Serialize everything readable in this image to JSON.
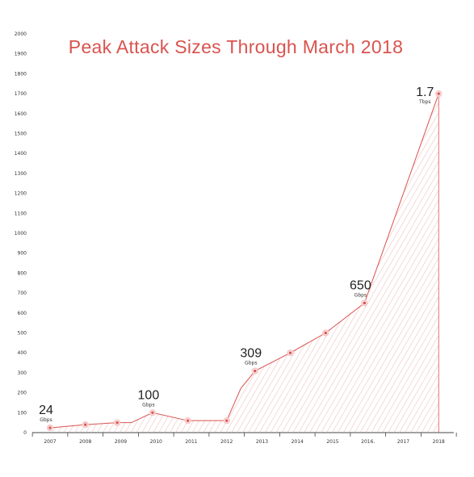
{
  "chart_data": {
    "type": "area",
    "title": "Peak Attack Sizes Through March 2018",
    "xlabel": "",
    "ylabel": "",
    "ylim": [
      0,
      2000
    ],
    "yticks": [
      0,
      100,
      200,
      300,
      400,
      500,
      600,
      700,
      800,
      900,
      1000,
      1100,
      1200,
      1300,
      1400,
      1500,
      1600,
      1700,
      1800,
      1900,
      2000
    ],
    "categories": [
      "2007",
      "2008",
      "2009",
      "2010",
      "2011",
      "2012",
      "2013",
      "2014",
      "2015",
      "2016.",
      "2017",
      "2018"
    ],
    "series": [
      {
        "points": [
          {
            "x": 0,
            "y": 24,
            "marker": true
          },
          {
            "x": 1,
            "y": 40,
            "marker": true
          },
          {
            "x": 1.9,
            "y": 50,
            "marker": true
          },
          {
            "x": 2.3,
            "y": 50,
            "marker": false
          },
          {
            "x": 2.9,
            "y": 100,
            "marker": true
          },
          {
            "x": 3.9,
            "y": 60,
            "marker": true
          },
          {
            "x": 5,
            "y": 60,
            "marker": true
          },
          {
            "x": 5.4,
            "y": 222,
            "marker": false
          },
          {
            "x": 5.8,
            "y": 309,
            "marker": true
          },
          {
            "x": 6.8,
            "y": 400,
            "marker": true
          },
          {
            "x": 7.8,
            "y": 500,
            "marker": true
          },
          {
            "x": 8.9,
            "y": 650,
            "marker": true
          },
          {
            "x": 11,
            "y": 1700,
            "marker": true
          }
        ]
      }
    ],
    "annotations": [
      {
        "x": 0,
        "y": 24,
        "value": "24",
        "unit": "Gbps"
      },
      {
        "x": 2.9,
        "y": 100,
        "value": "100",
        "unit": "Gbps"
      },
      {
        "x": 5.8,
        "y": 309,
        "value": "309",
        "unit": "Gbps"
      },
      {
        "x": 8.9,
        "y": 650,
        "value": "650",
        "unit": "Gbps"
      },
      {
        "x": 11,
        "y": 1700,
        "value": "1.7",
        "unit": "Tbps"
      }
    ],
    "grid": false,
    "colors": {
      "line": "#d9534f",
      "hatch": "#e8a3a3",
      "axis": "#444444",
      "title": "#d9534f"
    }
  }
}
